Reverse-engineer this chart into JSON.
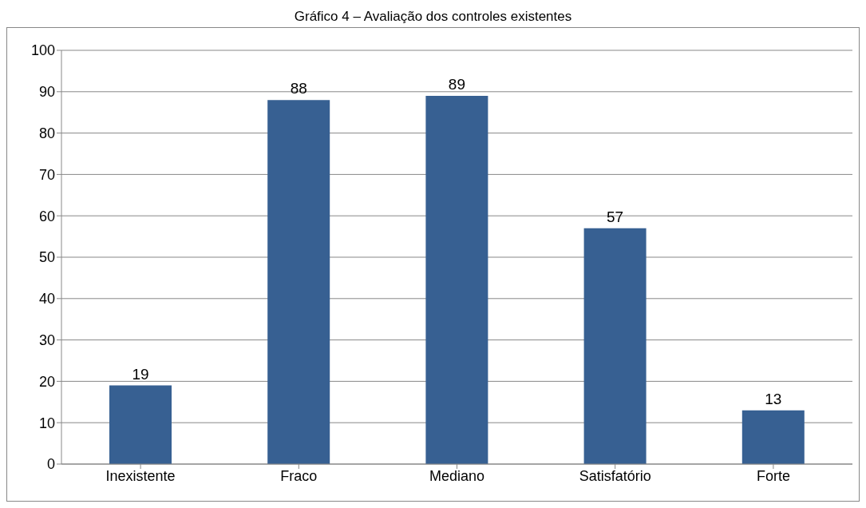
{
  "chart_data": {
    "type": "bar",
    "title": "Gráfico 4 – Avaliação dos controles existentes",
    "categories": [
      "Inexistente",
      "Fraco",
      "Mediano",
      "Satisfatório",
      "Forte"
    ],
    "values": [
      19,
      88,
      89,
      57,
      13
    ],
    "color": "#376092",
    "ylim": [
      0,
      100
    ],
    "yticks": [
      0,
      10,
      20,
      30,
      40,
      50,
      60,
      70,
      80,
      90,
      100
    ],
    "grid": "y",
    "data_labels": true,
    "legend": false
  }
}
